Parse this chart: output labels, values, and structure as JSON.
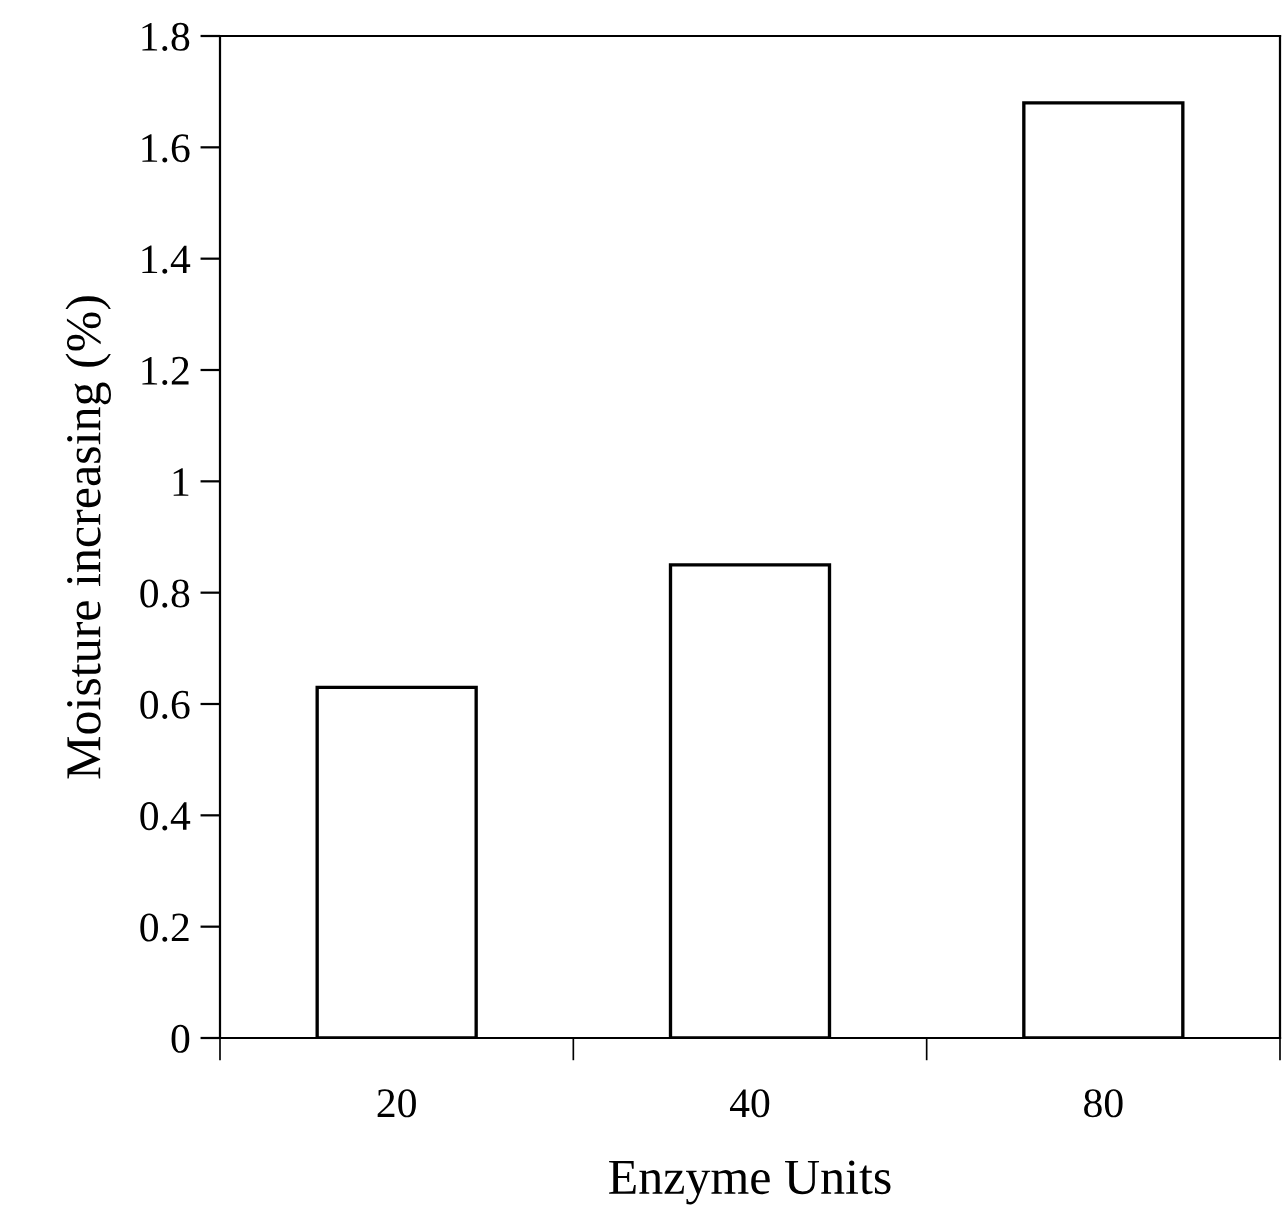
{
  "chart_data": {
    "type": "bar",
    "xlabel": "Enzyme Units",
    "ylabel": "Moisture increasing (%)",
    "categories": [
      "20",
      "40",
      "80"
    ],
    "values": [
      0.63,
      0.85,
      1.68
    ],
    "color": "#ffffff",
    "ylim": [
      0,
      1.8
    ],
    "yticks": [
      0,
      0.2,
      0.4,
      0.6,
      0.8,
      1,
      1.2,
      1.4,
      1.6,
      1.8
    ],
    "grid": false,
    "legend": false
  }
}
